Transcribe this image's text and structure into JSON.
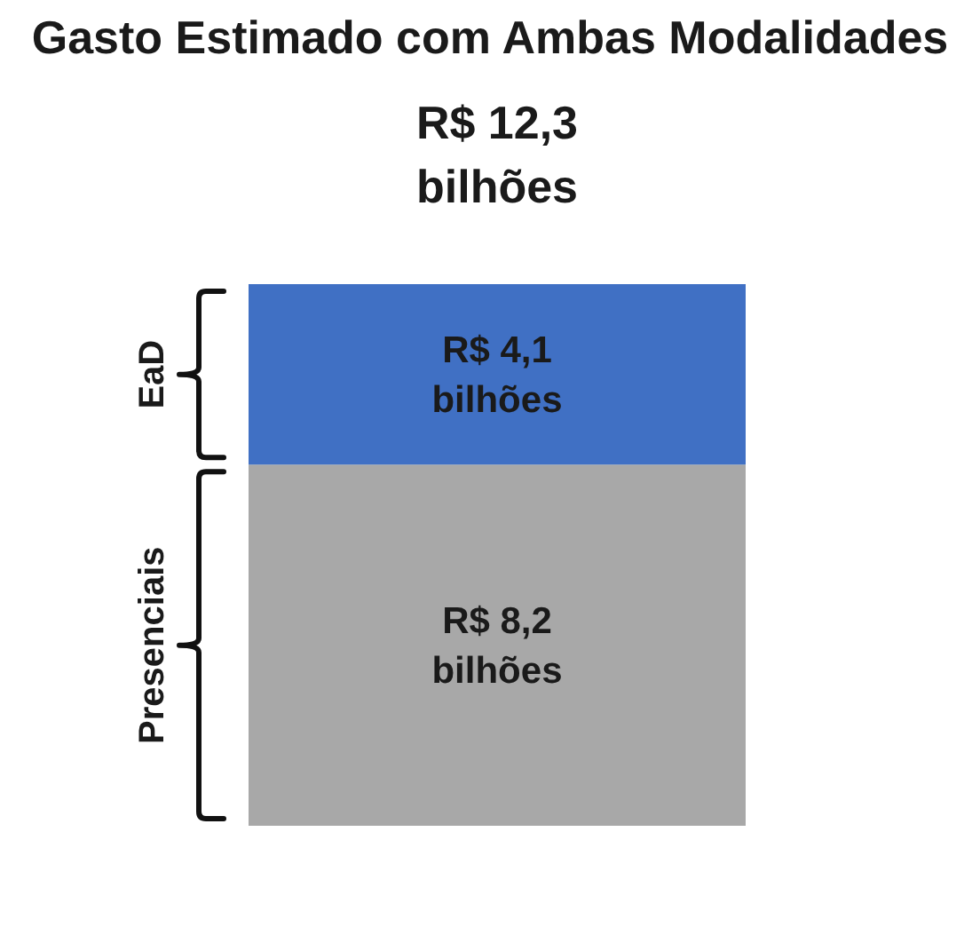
{
  "chart_data": {
    "type": "bar",
    "title": "Gasto Estimado com Ambas Modalidades",
    "categories": [
      null
    ],
    "stacked": true,
    "tick_labels": false,
    "series": [
      {
        "name": "Presenciais",
        "color": "#a8a8a8",
        "values": [
          8.2
        ],
        "value_labels": [
          "R$ 8,2 bilhões"
        ]
      },
      {
        "name": "EaD",
        "color": "#4070c4",
        "values": [
          4.1
        ],
        "value_labels": [
          "R$ 4,1 bilhões"
        ]
      }
    ],
    "totals": [
      "R$ 12,3 bilhões"
    ]
  }
}
